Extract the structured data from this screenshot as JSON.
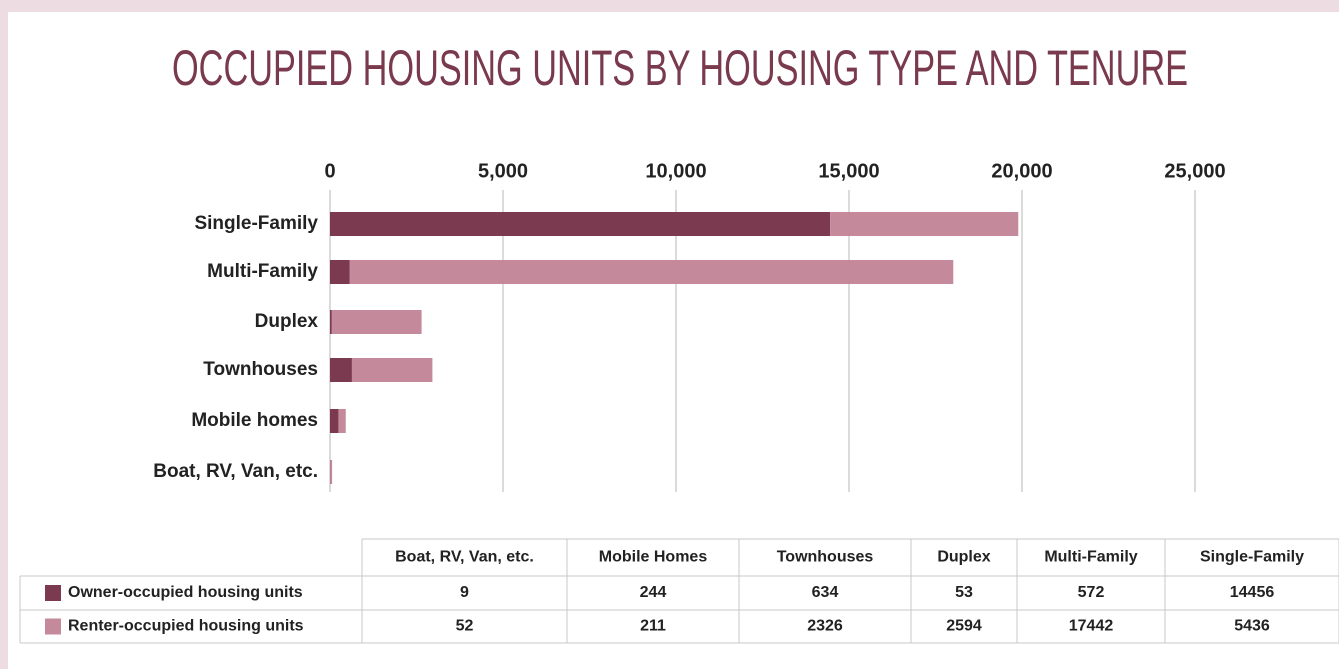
{
  "chart_data": {
    "type": "stacked-bar-horizontal",
    "title": "OCCUPIED HOUSING UNITS BY HOUSING TYPE AND TENURE",
    "categories": [
      "Boat, RV, Van, etc.",
      "Mobile homes",
      "Townhouses",
      "Duplex",
      "Multi-Family",
      "Single-Family"
    ],
    "series": [
      {
        "name": "Owner-occupied housing units",
        "color": "#7b3a4f",
        "values": [
          9,
          244,
          634,
          53,
          572,
          14456
        ]
      },
      {
        "name": "Renter-occupied housing units",
        "color": "#c48a9c",
        "values": [
          52,
          211,
          2326,
          2594,
          17442,
          5436
        ]
      }
    ],
    "xlim": [
      0,
      25000
    ],
    "xticks": [
      0,
      {
        "value": 5000,
        "label": "5,000"
      },
      {
        "value": 10000,
        "label": "10,000"
      },
      {
        "value": 15000,
        "label": "15,000"
      },
      {
        "value": 20000,
        "label": "20,000"
      },
      {
        "value": 25000,
        "label": "25,000"
      }
    ],
    "grid": true,
    "table_headers": [
      "Boat, RV, Van, etc.",
      "Mobile Homes",
      "Townhouses",
      "Duplex",
      "Multi-Family",
      "Single-Family"
    ]
  }
}
